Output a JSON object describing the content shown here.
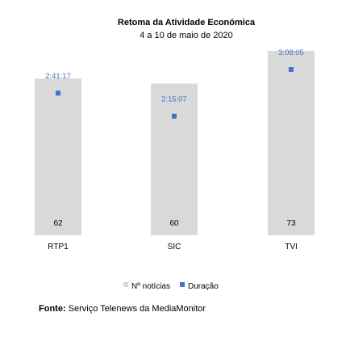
{
  "chart_data": {
    "type": "bar",
    "title": "Retoma da Atividade Económica",
    "subtitle": "4 a 10 de maio de 2020",
    "categories": [
      "RTP1",
      "SIC",
      "TVI"
    ],
    "series": [
      {
        "name": "Nº notícias",
        "kind": "bar",
        "color": "#D9D9D9",
        "values": [
          62,
          60,
          73
        ]
      },
      {
        "name": "Duração",
        "kind": "marker",
        "color": "#4472C4",
        "values": [
          161.28,
          135.12,
          188.08
        ],
        "labels": [
          "2:41:17",
          "2:15:07",
          "3:08:05"
        ]
      }
    ],
    "legend_position": "bottom",
    "grid": false
  },
  "footer": {
    "source_label": "Fonte:",
    "source_text": "Serviço Telenews da MediaMonitor"
  }
}
